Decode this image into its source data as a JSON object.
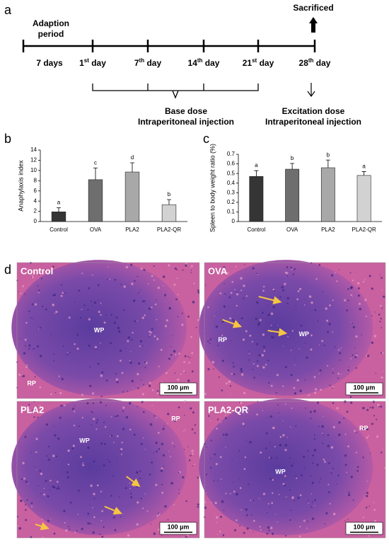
{
  "timeline": {
    "label": "a",
    "adaption": [
      "Adaption",
      "period"
    ],
    "sacrificed": "Sacrificed",
    "days": [
      "7 days",
      "1st day",
      "7th day",
      "14th day",
      "21st day",
      "28th day"
    ],
    "base": [
      "Base dose",
      "Intraperitoneal injection"
    ],
    "excitation": [
      "Excitation dose",
      "Intraperitoneal injection"
    ]
  },
  "chart_data": [
    {
      "type": "bar",
      "label": "b",
      "y_label": "Anaphylaxis index",
      "categories": [
        "Control",
        "OVA",
        "PLA2",
        "PLA2-QR"
      ],
      "values": [
        1.9,
        8.2,
        9.7,
        3.3
      ],
      "errors": [
        0.8,
        2.3,
        1.8,
        1.0
      ],
      "annotations": [
        "a",
        "c",
        "d",
        "b"
      ],
      "colors": [
        "#353535",
        "#6e6e6e",
        "#a8a8a8",
        "#d2d2d2"
      ],
      "ylim": [
        0,
        14
      ],
      "yticks": [
        0,
        2,
        4,
        6,
        8,
        10,
        12,
        14
      ]
    },
    {
      "type": "bar",
      "label": "c",
      "y_label": "Spleen to body weight ratio (%)",
      "categories": [
        "Control",
        "OVA",
        "PLA2",
        "PLA2-QR"
      ],
      "values": [
        0.47,
        0.545,
        0.56,
        0.48
      ],
      "errors": [
        0.06,
        0.06,
        0.08,
        0.04
      ],
      "annotations": [
        "a",
        "b",
        "b",
        "a"
      ],
      "colors": [
        "#353535",
        "#6e6e6e",
        "#a8a8a8",
        "#d2d2d2"
      ],
      "ylim": [
        0,
        0.7
      ],
      "yticks": [
        0,
        0.1,
        0.2,
        0.3,
        0.4,
        0.5,
        0.6,
        0.7
      ]
    }
  ],
  "histology": {
    "label": "d",
    "panels": [
      {
        "title": "Control",
        "labels": [
          "WP",
          "RP"
        ],
        "scale": "100 µm"
      },
      {
        "title": "OVA",
        "labels": [
          "RP",
          "WP"
        ],
        "scale": "100 µm"
      },
      {
        "title": "PLA2",
        "labels": [
          "WP",
          "RP"
        ],
        "scale": "100 µm"
      },
      {
        "title": "PLA2-QR",
        "labels": [
          "WP",
          "RP"
        ],
        "scale": "100 µm"
      }
    ]
  }
}
